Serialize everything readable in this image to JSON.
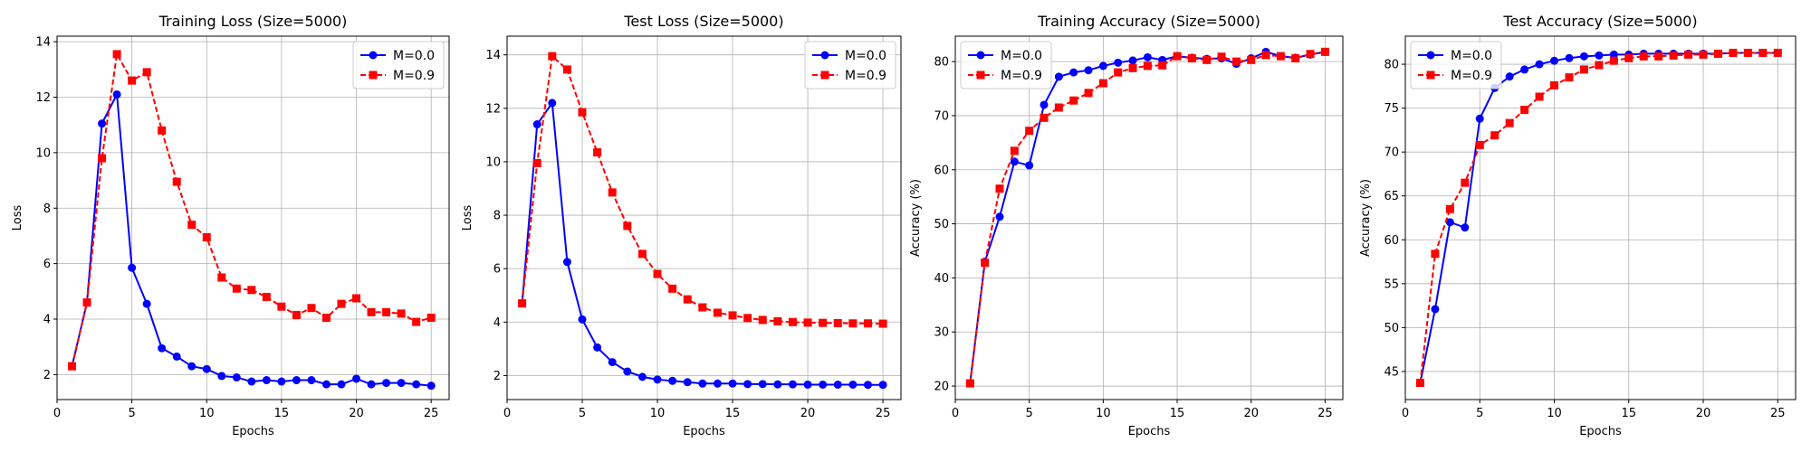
{
  "chart_data": [
    {
      "type": "line",
      "title": "Training Loss (Size=5000)",
      "xlabel": "Epochs",
      "ylabel": "Loss",
      "xlim": [
        0,
        26.2
      ],
      "ylim": [
        1.1,
        14.2
      ],
      "xticks": [
        0,
        5,
        10,
        15,
        20,
        25
      ],
      "yticks": [
        2,
        4,
        6,
        8,
        10,
        12,
        14
      ],
      "grid": true,
      "legend_position": "top-right",
      "x": [
        1,
        2,
        3,
        4,
        5,
        6,
        7,
        8,
        9,
        10,
        11,
        12,
        13,
        14,
        15,
        16,
        17,
        18,
        19,
        20,
        21,
        22,
        23,
        24,
        25
      ],
      "series": [
        {
          "name": "M=0.0",
          "color": "#0000ff",
          "linestyle": "solid",
          "marker": "circle",
          "values": [
            2.3,
            4.6,
            11.05,
            12.1,
            5.85,
            4.55,
            2.95,
            2.65,
            2.3,
            2.2,
            1.95,
            1.9,
            1.75,
            1.8,
            1.75,
            1.8,
            1.8,
            1.65,
            1.65,
            1.85,
            1.65,
            1.7,
            1.7,
            1.65,
            1.6
          ]
        },
        {
          "name": "M=0.9",
          "color": "#ff0000",
          "linestyle": "dashed",
          "marker": "square",
          "values": [
            2.3,
            4.6,
            9.8,
            13.55,
            12.6,
            12.9,
            10.8,
            8.95,
            7.4,
            6.95,
            5.5,
            5.1,
            5.05,
            4.8,
            4.45,
            4.15,
            4.4,
            4.05,
            4.55,
            4.75,
            4.25,
            4.25,
            4.2,
            3.9,
            4.05
          ]
        }
      ]
    },
    {
      "type": "line",
      "title": "Test Loss (Size=5000)",
      "xlabel": "Epochs",
      "ylabel": "Loss",
      "xlim": [
        0,
        26.2
      ],
      "ylim": [
        1.1,
        14.7
      ],
      "xticks": [
        0,
        5,
        10,
        15,
        20,
        25
      ],
      "yticks": [
        2,
        4,
        6,
        8,
        10,
        12,
        14
      ],
      "grid": true,
      "legend_position": "top-right",
      "x": [
        1,
        2,
        3,
        4,
        5,
        6,
        7,
        8,
        9,
        10,
        11,
        12,
        13,
        14,
        15,
        16,
        17,
        18,
        19,
        20,
        21,
        22,
        23,
        24,
        25
      ],
      "series": [
        {
          "name": "M=0.0",
          "color": "#0000ff",
          "linestyle": "solid",
          "marker": "circle",
          "values": [
            4.7,
            11.4,
            12.2,
            6.25,
            4.1,
            3.05,
            2.5,
            2.15,
            1.95,
            1.85,
            1.8,
            1.75,
            1.7,
            1.7,
            1.7,
            1.68,
            1.68,
            1.67,
            1.67,
            1.66,
            1.66,
            1.66,
            1.66,
            1.65,
            1.65
          ]
        },
        {
          "name": "M=0.9",
          "color": "#ff0000",
          "linestyle": "dashed",
          "marker": "square",
          "values": [
            4.7,
            9.95,
            13.95,
            13.45,
            11.85,
            10.35,
            8.85,
            7.6,
            6.55,
            5.8,
            5.25,
            4.85,
            4.55,
            4.35,
            4.25,
            4.15,
            4.08,
            4.03,
            4.0,
            3.98,
            3.97,
            3.96,
            3.95,
            3.95,
            3.94
          ]
        }
      ]
    },
    {
      "type": "line",
      "title": "Training Accuracy (Size=5000)",
      "xlabel": "Epochs",
      "ylabel": "Accuracy (%)",
      "xlim": [
        0,
        26.2
      ],
      "ylim": [
        17.5,
        84.7
      ],
      "xticks": [
        0,
        5,
        10,
        15,
        20,
        25
      ],
      "yticks": [
        20,
        30,
        40,
        50,
        60,
        70,
        80
      ],
      "grid": true,
      "legend_position": "top-left",
      "x": [
        1,
        2,
        3,
        4,
        5,
        6,
        7,
        8,
        9,
        10,
        11,
        12,
        13,
        14,
        15,
        16,
        17,
        18,
        19,
        20,
        21,
        22,
        23,
        24,
        25
      ],
      "series": [
        {
          "name": "M=0.0",
          "color": "#0000ff",
          "linestyle": "solid",
          "marker": "circle",
          "values": [
            20.5,
            43.0,
            51.3,
            61.5,
            60.8,
            72.0,
            77.2,
            78.0,
            78.4,
            79.2,
            79.8,
            80.2,
            80.8,
            80.3,
            81.0,
            80.7,
            80.5,
            80.6,
            79.6,
            80.6,
            81.8,
            81.0,
            80.7,
            81.3,
            81.8
          ]
        },
        {
          "name": "M=0.9",
          "color": "#ff0000",
          "linestyle": "dashed",
          "marker": "square",
          "values": [
            20.5,
            42.8,
            56.5,
            63.5,
            67.2,
            69.6,
            71.5,
            72.8,
            74.2,
            76.0,
            78.0,
            78.8,
            79.2,
            79.3,
            81.0,
            80.6,
            80.3,
            80.9,
            80.0,
            80.3,
            81.2,
            81.0,
            80.6,
            81.4,
            81.8
          ]
        }
      ]
    },
    {
      "type": "line",
      "title": "Test Accuracy (Size=5000)",
      "xlabel": "Epochs",
      "ylabel": "Accuracy (%)",
      "xlim": [
        0,
        26.2
      ],
      "ylim": [
        41.8,
        83.2
      ],
      "xticks": [
        0,
        5,
        10,
        15,
        20,
        25
      ],
      "yticks": [
        45,
        50,
        55,
        60,
        65,
        70,
        75,
        80
      ],
      "grid": true,
      "legend_position": "top-left",
      "x": [
        1,
        2,
        3,
        4,
        5,
        6,
        7,
        8,
        9,
        10,
        11,
        12,
        13,
        14,
        15,
        16,
        17,
        18,
        19,
        20,
        21,
        22,
        23,
        24,
        25
      ],
      "series": [
        {
          "name": "M=0.0",
          "color": "#0000ff",
          "linestyle": "solid",
          "marker": "circle",
          "values": [
            43.7,
            52.1,
            62.0,
            61.4,
            73.8,
            77.3,
            78.6,
            79.4,
            80.0,
            80.4,
            80.7,
            80.9,
            81.0,
            81.1,
            81.1,
            81.2,
            81.2,
            81.2,
            81.2,
            81.2,
            81.2,
            81.3,
            81.3,
            81.3,
            81.3
          ]
        },
        {
          "name": "M=0.9",
          "color": "#ff0000",
          "linestyle": "dashed",
          "marker": "square",
          "values": [
            43.7,
            58.4,
            63.5,
            66.5,
            70.8,
            71.9,
            73.3,
            74.8,
            76.3,
            77.6,
            78.5,
            79.4,
            79.9,
            80.4,
            80.7,
            80.9,
            80.9,
            81.0,
            81.1,
            81.1,
            81.2,
            81.3,
            81.3,
            81.3,
            81.3
          ]
        }
      ]
    }
  ]
}
